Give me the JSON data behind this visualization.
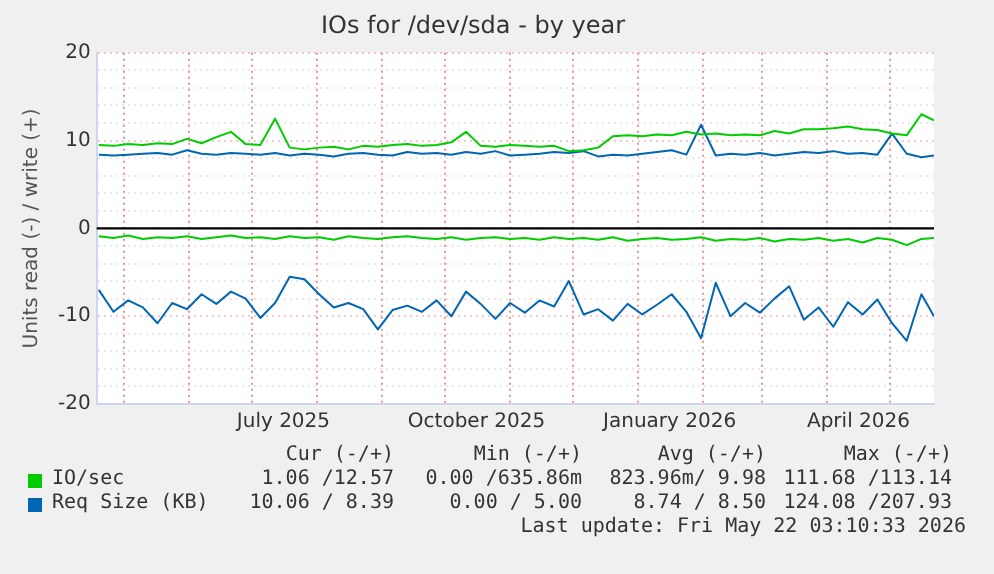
{
  "chart_data": {
    "type": "line",
    "title": "IOs for /dev/sda - by year",
    "ylabel": "Units read (-) / write (+)",
    "x": [
      "2025-04-19",
      "2025-04-26",
      "2025-05-03",
      "2025-05-10",
      "2025-05-17",
      "2025-05-24",
      "2025-05-31",
      "2025-06-07",
      "2025-06-14",
      "2025-06-21",
      "2025-06-28",
      "2025-07-05",
      "2025-07-12",
      "2025-07-19",
      "2025-07-26",
      "2025-08-02",
      "2025-08-09",
      "2025-08-16",
      "2025-08-23",
      "2025-08-30",
      "2025-09-06",
      "2025-09-13",
      "2025-09-20",
      "2025-09-27",
      "2025-10-04",
      "2025-10-11",
      "2025-10-18",
      "2025-10-25",
      "2025-11-01",
      "2025-11-08",
      "2025-11-15",
      "2025-11-22",
      "2025-11-29",
      "2025-12-06",
      "2025-12-13",
      "2025-12-20",
      "2025-12-27",
      "2026-01-03",
      "2026-01-10",
      "2026-01-17",
      "2026-01-24",
      "2026-01-31",
      "2026-02-07",
      "2026-02-14",
      "2026-02-21",
      "2026-02-28",
      "2026-03-07",
      "2026-03-14",
      "2026-03-21",
      "2026-03-28",
      "2026-04-04",
      "2026-04-11",
      "2026-04-18",
      "2026-04-25",
      "2026-05-02",
      "2026-05-09",
      "2026-05-16",
      "2026-05-22"
    ],
    "series": [
      {
        "name": "IO/sec",
        "color": "#00cc00",
        "values": [
          9.5,
          9.4,
          9.6,
          9.5,
          9.7,
          9.6,
          10.2,
          9.7,
          10.4,
          11.0,
          9.6,
          9.5,
          12.5,
          9.2,
          9.0,
          9.2,
          9.3,
          9.0,
          9.4,
          9.3,
          9.5,
          9.6,
          9.4,
          9.5,
          9.8,
          11.0,
          9.4,
          9.3,
          9.5,
          9.4,
          9.3,
          9.4,
          8.8,
          8.9,
          9.2,
          10.5,
          10.6,
          10.5,
          10.7,
          10.6,
          11.0,
          10.7,
          10.8,
          10.6,
          10.7,
          10.6,
          11.1,
          10.8,
          11.3,
          11.3,
          11.4,
          11.6,
          11.3,
          11.2,
          10.8,
          10.6,
          13.0,
          12.3
        ]
      },
      {
        "color": "#00cc00",
        "values": [
          -0.9,
          -1.1,
          -0.8,
          -1.2,
          -1.0,
          -1.1,
          -0.9,
          -1.2,
          -1.0,
          -0.8,
          -1.1,
          -1.0,
          -1.2,
          -0.9,
          -1.1,
          -1.0,
          -1.3,
          -0.9,
          -1.1,
          -1.2,
          -1.0,
          -0.9,
          -1.1,
          -1.2,
          -1.0,
          -1.3,
          -1.1,
          -1.0,
          -1.2,
          -1.1,
          -1.3,
          -1.0,
          -1.2,
          -1.1,
          -1.3,
          -1.0,
          -1.4,
          -1.2,
          -1.1,
          -1.3,
          -1.2,
          -1.0,
          -1.4,
          -1.2,
          -1.3,
          -1.1,
          -1.5,
          -1.2,
          -1.3,
          -1.1,
          -1.4,
          -1.2,
          -1.6,
          -1.1,
          -1.3,
          -1.9,
          -1.2,
          -1.1
        ]
      },
      {
        "name": "Req Size (KB)",
        "color": "#0066b3",
        "values": [
          8.4,
          8.3,
          8.4,
          8.5,
          8.6,
          8.4,
          8.9,
          8.5,
          8.4,
          8.6,
          8.5,
          8.4,
          8.6,
          8.3,
          8.5,
          8.4,
          8.2,
          8.5,
          8.6,
          8.4,
          8.3,
          8.7,
          8.5,
          8.6,
          8.4,
          8.7,
          8.5,
          8.8,
          8.3,
          8.4,
          8.5,
          8.7,
          8.6,
          8.8,
          8.2,
          8.4,
          8.3,
          8.5,
          8.7,
          8.9,
          8.4,
          11.8,
          8.3,
          8.5,
          8.4,
          8.6,
          8.3,
          8.5,
          8.7,
          8.6,
          8.8,
          8.5,
          8.6,
          8.4,
          10.8,
          8.5,
          8.1,
          8.3
        ]
      },
      {
        "color": "#0066b3",
        "values": [
          -7.0,
          -9.5,
          -8.2,
          -9.0,
          -10.8,
          -8.5,
          -9.2,
          -7.5,
          -8.6,
          -7.2,
          -8.0,
          -10.2,
          -8.5,
          -5.5,
          -5.8,
          -7.5,
          -9.0,
          -8.5,
          -9.2,
          -11.5,
          -9.3,
          -8.8,
          -9.5,
          -8.2,
          -10.0,
          -7.2,
          -8.6,
          -10.3,
          -8.5,
          -9.6,
          -8.2,
          -8.9,
          -6.0,
          -9.8,
          -9.2,
          -10.5,
          -8.6,
          -9.8,
          -8.7,
          -7.5,
          -9.5,
          -12.5,
          -6.2,
          -10.0,
          -8.5,
          -9.6,
          -8.0,
          -6.6,
          -10.4,
          -9.0,
          -11.2,
          -8.4,
          -9.8,
          -8.1,
          -10.8,
          -12.8,
          -7.5,
          -10.0
        ]
      }
    ],
    "xlim": [
      "2025-04-18",
      "2026-05-22"
    ],
    "xticks": [
      {
        "value": "2025-05-01",
        "label": null
      },
      {
        "value": "2025-06-01",
        "label": null
      },
      {
        "value": "2025-07-01",
        "label": null
      },
      {
        "value": "2025-07-16",
        "label": "July 2025"
      },
      {
        "value": "2025-08-01",
        "label": null
      },
      {
        "value": "2025-09-01",
        "label": null
      },
      {
        "value": "2025-10-01",
        "label": null
      },
      {
        "value": "2025-10-16",
        "label": "October 2025"
      },
      {
        "value": "2025-11-01",
        "label": null
      },
      {
        "value": "2025-12-01",
        "label": null
      },
      {
        "value": "2026-01-01",
        "label": null
      },
      {
        "value": "2026-01-16",
        "label": "January 2026"
      },
      {
        "value": "2026-02-01",
        "label": null
      },
      {
        "value": "2026-03-01",
        "label": null
      },
      {
        "value": "2026-04-01",
        "label": null
      },
      {
        "value": "2026-04-16",
        "label": "April 2026"
      },
      {
        "value": "2026-05-01",
        "label": null
      }
    ],
    "ylim": [
      -20,
      20
    ],
    "yticks": [
      -20,
      {
        "value": -18,
        "label": null
      },
      {
        "value": -16,
        "label": null
      },
      {
        "value": -14,
        "label": null
      },
      {
        "value": -12,
        "label": null
      },
      -10,
      {
        "value": -8,
        "label": null
      },
      {
        "value": -6,
        "label": null
      },
      {
        "value": -4,
        "label": null
      },
      {
        "value": -2,
        "label": null
      },
      0,
      {
        "value": 2,
        "label": null
      },
      {
        "value": 4,
        "label": null
      },
      {
        "value": 6,
        "label": null
      },
      {
        "value": 8,
        "label": null
      },
      10,
      {
        "value": 12,
        "label": null
      },
      {
        "value": 14,
        "label": null
      },
      {
        "value": 16,
        "label": null
      },
      {
        "value": 18,
        "label": null
      },
      20
    ],
    "ref_lines": [
      {
        "axis": "y",
        "value": 0,
        "color": "#000000"
      }
    ],
    "grid": true,
    "legend": "bottom",
    "marker": "none",
    "line_style": "solid",
    "annotations": [
      "Cur (-/+)",
      "Min (-/+)",
      "Avg (-/+)",
      "Max (-/+)",
      "1.06 /12.57",
      "0.00 /635.86m",
      "823.96m/ 9.98",
      "111.68 /113.14",
      "10.06 / 8.39",
      "0.00 / 5.00",
      "8.74 / 8.50",
      "124.08 /207.93",
      "Last update: Fri May 22 03:10:33 2026"
    ]
  }
}
